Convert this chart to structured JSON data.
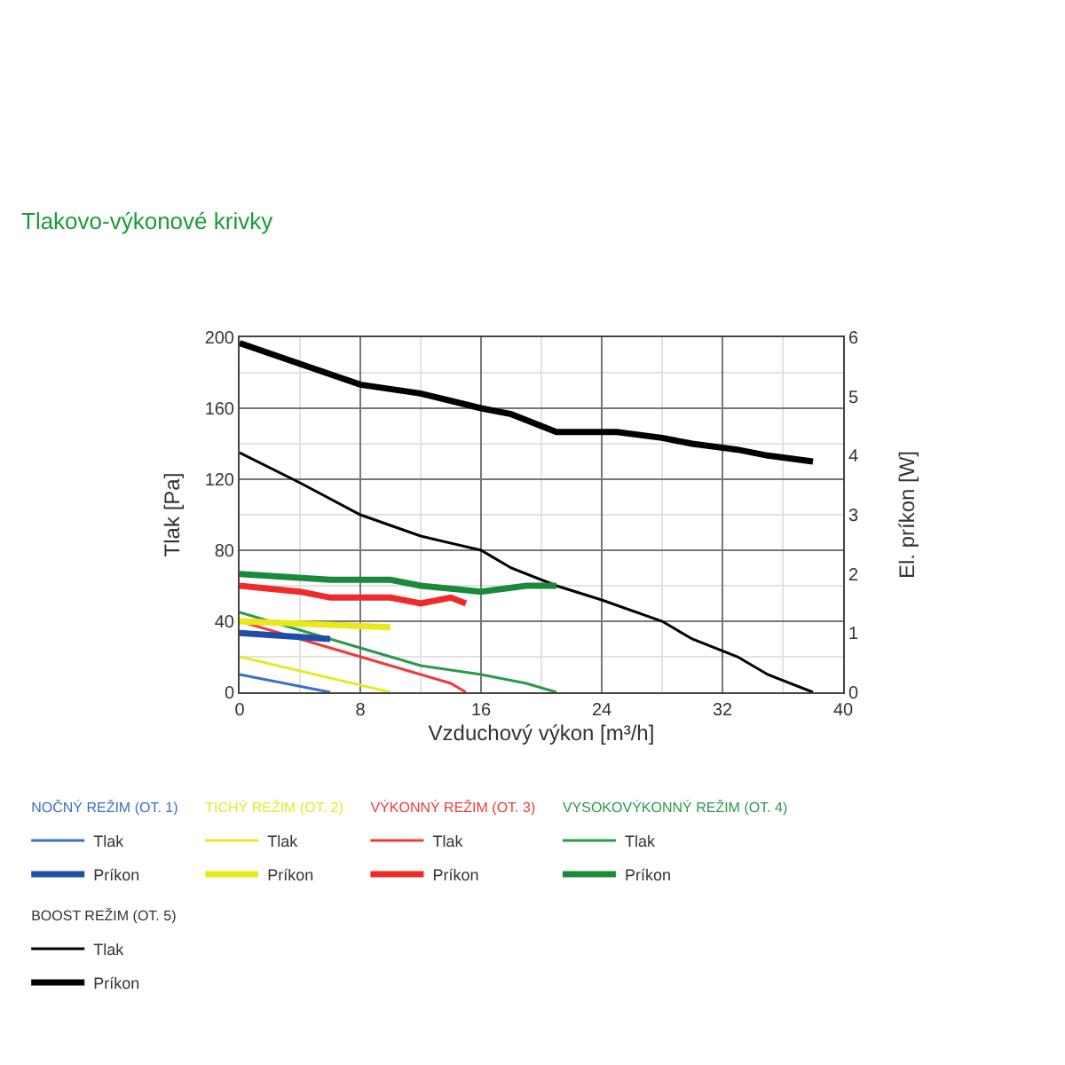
{
  "chart_data": {
    "type": "line",
    "title": "Tlakovo-výkonové krivky",
    "xlabel": "Vzduchový výkon [m³/h]",
    "ylabel": "Tlak [Pa]",
    "y2label": "El. príkon [W]",
    "annotations": [
      "NOČNÝ REŽIM (OT. 1)",
      "TICHÝ REŽIM (OT. 2)",
      "VÝKONNÝ REŽIM (OT. 3)",
      "VYSOKOVÝKONNÝ REŽIM (OT. 4)",
      "BOOST REŽIM (OT. 5)"
    ],
    "xlim": [
      0,
      40
    ],
    "xticks": [
      0,
      8,
      16,
      24,
      32,
      40
    ],
    "ylim": [
      0,
      200
    ],
    "yticks": [
      0,
      40,
      80,
      120,
      160,
      200
    ],
    "y2lim": [
      0,
      6
    ],
    "y2ticks": [
      0,
      1,
      2,
      3,
      4,
      5,
      6
    ],
    "grid": true,
    "legend": "bottom",
    "marker": "none",
    "line_style": "solid",
    "series": [
      {
        "name": "Tlak",
        "color": "#3a6fc4",
        "x": [
          0,
          6
        ],
        "values": [
          10,
          0
        ]
      },
      {
        "name": "Príkon",
        "color": "#1f4ea8",
        "axis": "y2",
        "x": [
          0,
          6
        ],
        "values": [
          1.0,
          0.9
        ]
      },
      {
        "name": "Tlak",
        "color": "#e8e82a",
        "x": [
          0,
          5,
          10
        ],
        "values": [
          20,
          10,
          0
        ]
      },
      {
        "name": "Príkon",
        "color": "#e8e81a",
        "axis": "y2",
        "x": [
          0,
          10
        ],
        "values": [
          1.2,
          1.1
        ]
      },
      {
        "name": "Tlak",
        "color": "#f03a3a",
        "x": [
          0,
          4,
          8,
          12,
          14,
          15
        ],
        "values": [
          40,
          30,
          20,
          10,
          5,
          0
        ]
      },
      {
        "name": "Príkon",
        "color": "#f02a2a",
        "axis": "y2",
        "x": [
          0,
          4,
          6,
          10,
          12,
          14,
          15
        ],
        "values": [
          1.8,
          1.7,
          1.6,
          1.6,
          1.5,
          1.6,
          1.5
        ]
      },
      {
        "name": "Tlak",
        "color": "#2a9a4a",
        "x": [
          0,
          4,
          8,
          12,
          16,
          19,
          21
        ],
        "values": [
          45,
          35,
          25,
          15,
          10,
          5,
          0
        ]
      },
      {
        "name": "Príkon",
        "color": "#1a8a3a",
        "axis": "y2",
        "x": [
          0,
          6,
          10,
          12,
          16,
          19,
          21
        ],
        "values": [
          2.0,
          1.9,
          1.9,
          1.8,
          1.7,
          1.8,
          1.8
        ]
      },
      {
        "name": "Tlak",
        "color": "#000000",
        "x": [
          0,
          4,
          8,
          12,
          16,
          18,
          21,
          24,
          28,
          30,
          33,
          35,
          38
        ],
        "values": [
          135,
          118,
          100,
          88,
          80,
          70,
          60,
          52,
          40,
          30,
          20,
          10,
          0
        ]
      },
      {
        "name": "Príkon",
        "color": "#000000",
        "axis": "y2",
        "x": [
          0,
          4,
          8,
          12,
          16,
          18,
          21,
          25,
          28,
          30,
          33,
          35,
          38
        ],
        "values": [
          5.9,
          5.55,
          5.2,
          5.05,
          4.8,
          4.7,
          4.4,
          4.4,
          4.3,
          4.2,
          4.1,
          4.0,
          3.9
        ]
      }
    ]
  }
}
